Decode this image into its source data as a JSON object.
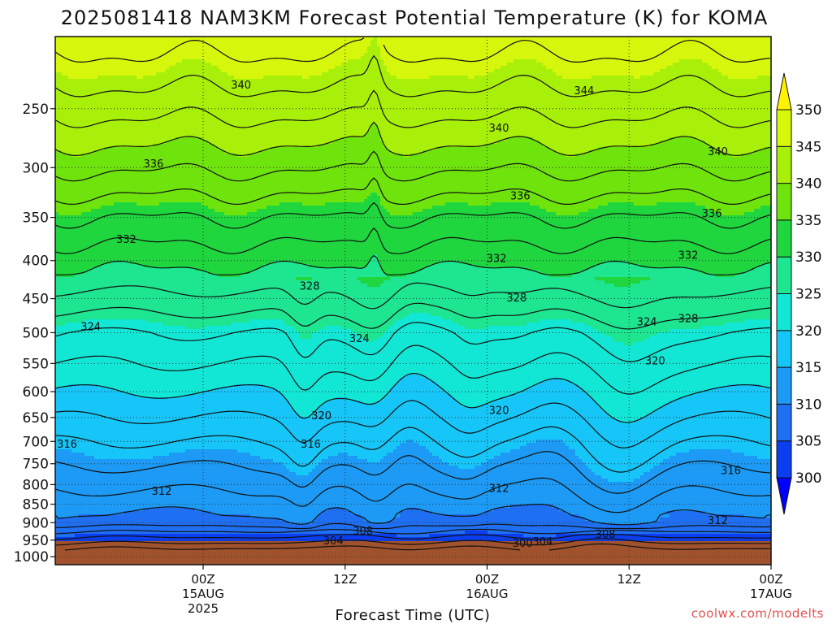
{
  "chart_data": {
    "type": "contour",
    "title": "2025081418 NAM3KM Forecast Potential Temperature (K) for KOMA",
    "xlabel": "Forecast Time (UTC)",
    "ylabel": "",
    "credit": "coolwx.com/modelts",
    "y_scale": "log-pressure",
    "ylim": [
      1025,
      200
    ],
    "xlim_hours": [
      -6.5,
      54
    ],
    "grid": true,
    "y_ticks": [
      1000,
      950,
      900,
      850,
      800,
      750,
      700,
      650,
      600,
      550,
      500,
      450,
      400,
      350,
      300,
      250
    ],
    "x_ticks": [
      {
        "hour": 6,
        "line1": "00Z",
        "line2": "15AUG",
        "line3": "2025"
      },
      {
        "hour": 18,
        "line1": "12Z",
        "line2": "",
        "line3": ""
      },
      {
        "hour": 30,
        "line1": "00Z",
        "line2": "16AUG",
        "line3": ""
      },
      {
        "hour": 42,
        "line1": "12Z",
        "line2": "",
        "line3": ""
      },
      {
        "hour": 54,
        "line1": "00Z",
        "line2": "17AUG",
        "line3": ""
      }
    ],
    "colorbar": {
      "levels": [
        300,
        305,
        310,
        315,
        320,
        325,
        330,
        335,
        340,
        345,
        350
      ],
      "colors": [
        "#0000ff",
        "#0a3ef0",
        "#1f6ff2",
        "#1c9af5",
        "#16c6f8",
        "#12e6d4",
        "#1ee58f",
        "#1fd63e",
        "#6ee30c",
        "#a8ef0a",
        "#d6f70c",
        "#fff200"
      ]
    },
    "contour_interval_K": 2,
    "contour_labels": [
      {
        "value": 340,
        "hour": 9.2,
        "p": 232
      },
      {
        "value": 336,
        "hour": 1.8,
        "p": 296
      },
      {
        "value": 332,
        "hour": -0.5,
        "p": 374
      },
      {
        "value": 328,
        "hour": 15.0,
        "p": 432
      },
      {
        "value": 324,
        "hour": -3.5,
        "p": 490
      },
      {
        "value": 324,
        "hour": 19.2,
        "p": 508
      },
      {
        "value": 340,
        "hour": 31.0,
        "p": 265
      },
      {
        "value": 344,
        "hour": 38.2,
        "p": 236
      },
      {
        "value": 340,
        "hour": 49.5,
        "p": 285
      },
      {
        "value": 336,
        "hour": 32.8,
        "p": 327
      },
      {
        "value": 336,
        "hour": 49.0,
        "p": 345
      },
      {
        "value": 332,
        "hour": 30.8,
        "p": 397
      },
      {
        "value": 332,
        "hour": 47.0,
        "p": 393
      },
      {
        "value": 328,
        "hour": 32.5,
        "p": 448
      },
      {
        "value": 328,
        "hour": 47.0,
        "p": 478
      },
      {
        "value": 324,
        "hour": 43.5,
        "p": 483
      },
      {
        "value": 320,
        "hour": 44.2,
        "p": 545
      },
      {
        "value": 320,
        "hour": 16.0,
        "p": 645
      },
      {
        "value": 320,
        "hour": 31.0,
        "p": 635
      },
      {
        "value": 316,
        "hour": -5.5,
        "p": 705
      },
      {
        "value": 316,
        "hour": 15.1,
        "p": 705
      },
      {
        "value": 316,
        "hour": 50.6,
        "p": 765
      },
      {
        "value": 312,
        "hour": 2.5,
        "p": 815
      },
      {
        "value": 312,
        "hour": 31.0,
        "p": 808
      },
      {
        "value": 312,
        "hour": 49.5,
        "p": 893
      },
      {
        "value": 308,
        "hour": 19.5,
        "p": 922
      },
      {
        "value": 308,
        "hour": 40.0,
        "p": 932
      },
      {
        "value": 304,
        "hour": 17.0,
        "p": 950
      },
      {
        "value": 304,
        "hour": 34.7,
        "p": 953
      },
      {
        "value": 300,
        "hour": 33.0,
        "p": 958
      }
    ]
  }
}
